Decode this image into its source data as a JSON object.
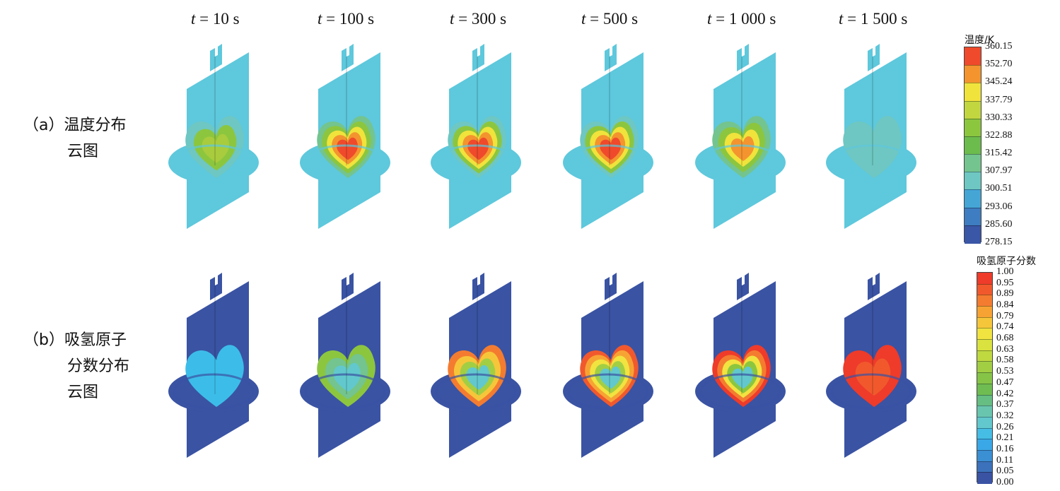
{
  "times": [
    "t = 10 s",
    "t = 100 s",
    "t = 300 s",
    "t = 500 s",
    "t = 1 000 s",
    "t = 1 500 s"
  ],
  "rows": {
    "a": {
      "line1": "（a）温度分布",
      "line2": "云图"
    },
    "b": {
      "line1": "（b）吸氢原子",
      "line2": "分数分布",
      "line3": "云图"
    }
  },
  "legend_temp": {
    "title": "温度/K",
    "ticks": [
      "360.15",
      "352.70",
      "345.24",
      "337.79",
      "330.33",
      "322.88",
      "315.42",
      "307.97",
      "300.51",
      "293.06",
      "285.60",
      "278.15"
    ],
    "colors": [
      "#ef4a2b",
      "#f4942f",
      "#f0e33c",
      "#c2d640",
      "#8cc63f",
      "#6cbc4d",
      "#73c48e",
      "#6ec7c2",
      "#45a6d6",
      "#3e7dc1",
      "#3a56a6"
    ]
  },
  "legend_h": {
    "title": "吸氢原子分数",
    "ticks": [
      "1.00",
      "0.95",
      "0.89",
      "0.84",
      "0.79",
      "0.74",
      "0.68",
      "0.63",
      "0.58",
      "0.53",
      "0.47",
      "0.42",
      "0.37",
      "0.32",
      "0.26",
      "0.21",
      "0.16",
      "0.11",
      "0.05",
      "0.00"
    ],
    "colors": [
      "#ee3b2a",
      "#f1592d",
      "#f47c30",
      "#f7a334",
      "#f6c63a",
      "#f1e340",
      "#d9e23f",
      "#bfd941",
      "#a2ce44",
      "#86c447",
      "#6fbc52",
      "#66be82",
      "#6ac5ae",
      "#62c8cd",
      "#45bde4",
      "#3aa8e6",
      "#3b8fd3",
      "#3c72bb",
      "#3a53a3"
    ]
  },
  "panels_top": [
    {
      "time": "t = 10 s",
      "fill_colors": [
        "#6ec7c2",
        "#8cc63f",
        "#a8cc3d"
      ]
    },
    {
      "time": "t = 100 s",
      "fill_colors": [
        "#73c48e",
        "#8cc63f",
        "#f0e33c",
        "#f4942f",
        "#ef4a2b"
      ]
    },
    {
      "time": "t = 300 s",
      "fill_colors": [
        "#6ec7c2",
        "#8cc63f",
        "#f0e33c",
        "#f4942f",
        "#ef4a2b"
      ]
    },
    {
      "time": "t = 500 s",
      "fill_colors": [
        "#6ec7c2",
        "#8cc63f",
        "#f0e33c",
        "#f4942f",
        "#ef4a2b"
      ]
    },
    {
      "time": "t = 1 000 s",
      "fill_colors": [
        "#73c48e",
        "#8cc63f",
        "#f0e33c",
        "#f4942f"
      ]
    },
    {
      "time": "t = 1 500 s",
      "fill_colors": [
        "#6ec7c2"
      ]
    }
  ],
  "panels_bottom": [
    {
      "time": "t = 10 s",
      "fill_colors": [
        "#3cbde9"
      ]
    },
    {
      "time": "t = 100 s",
      "fill_colors": [
        "#8cc63f",
        "#73c48e",
        "#62c8cd"
      ]
    },
    {
      "time": "t = 300 s",
      "fill_colors": [
        "#f47c30",
        "#f6c63a",
        "#a2ce44",
        "#62c8cd"
      ]
    },
    {
      "time": "t = 500 s",
      "fill_colors": [
        "#f1592d",
        "#f7a334",
        "#f1e340",
        "#a2ce44",
        "#62c8cd"
      ]
    },
    {
      "time": "t = 1 000 s",
      "fill_colors": [
        "#ee3b2a",
        "#f47c30",
        "#f1e340",
        "#8cc63f",
        "#62c8cd"
      ]
    },
    {
      "time": "t = 1 500 s",
      "fill_colors": [
        "#ee3b2a",
        "#f1592d"
      ]
    }
  ],
  "colors": {
    "shell": "#5ec8dc",
    "bottom_body": "#3a53a3"
  }
}
